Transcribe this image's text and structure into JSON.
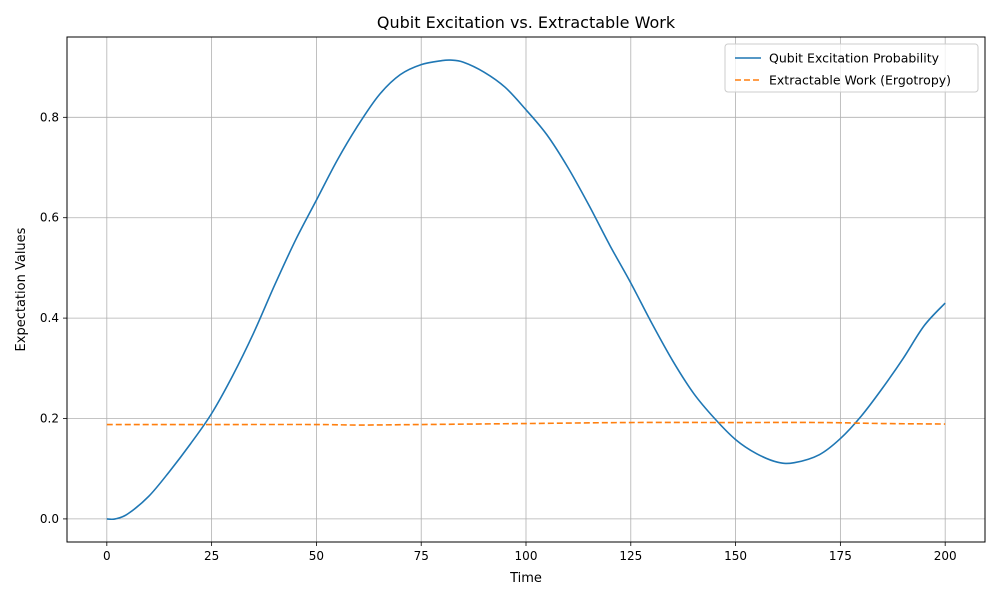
{
  "chart_data": {
    "type": "line",
    "title": "Qubit Excitation vs. Extractable Work",
    "xlabel": "Time",
    "ylabel": "Expectation Values",
    "xlim": [
      -9.5,
      209.5
    ],
    "ylim": [
      -0.046,
      0.96
    ],
    "xticks": [
      0,
      25,
      50,
      75,
      100,
      125,
      150,
      175,
      200
    ],
    "yticks": [
      0.0,
      0.2,
      0.4,
      0.6,
      0.8
    ],
    "ytick_labels": [
      "0.0",
      "0.2",
      "0.4",
      "0.6",
      "0.8"
    ],
    "grid": true,
    "legend_position": "top-right",
    "series": [
      {
        "name": "Qubit Excitation Probability",
        "color": "#1f77b4",
        "style": "solid",
        "x": [
          0,
          2,
          5,
          10,
          15,
          20,
          25,
          30,
          35,
          40,
          45,
          50,
          55,
          60,
          65,
          70,
          75,
          80,
          82,
          85,
          90,
          95,
          100,
          105,
          110,
          115,
          120,
          125,
          130,
          135,
          140,
          145,
          150,
          155,
          160,
          164,
          170,
          175,
          180,
          185,
          190,
          195,
          200
        ],
        "y": [
          0.0,
          0.0,
          0.01,
          0.045,
          0.095,
          0.15,
          0.21,
          0.285,
          0.37,
          0.465,
          0.555,
          0.635,
          0.715,
          0.785,
          0.845,
          0.885,
          0.905,
          0.913,
          0.914,
          0.91,
          0.89,
          0.86,
          0.815,
          0.765,
          0.7,
          0.625,
          0.545,
          0.47,
          0.39,
          0.315,
          0.25,
          0.2,
          0.158,
          0.13,
          0.113,
          0.112,
          0.128,
          0.16,
          0.205,
          0.26,
          0.32,
          0.385,
          0.43
        ]
      },
      {
        "name": "Extractable Work (Ergotropy)",
        "color": "#ff7f0e",
        "style": "dashed",
        "x": [
          0,
          25,
          50,
          60,
          75,
          100,
          125,
          150,
          170,
          185,
          200
        ],
        "y": [
          0.188,
          0.188,
          0.188,
          0.187,
          0.188,
          0.19,
          0.192,
          0.192,
          0.192,
          0.19,
          0.189
        ]
      }
    ]
  }
}
